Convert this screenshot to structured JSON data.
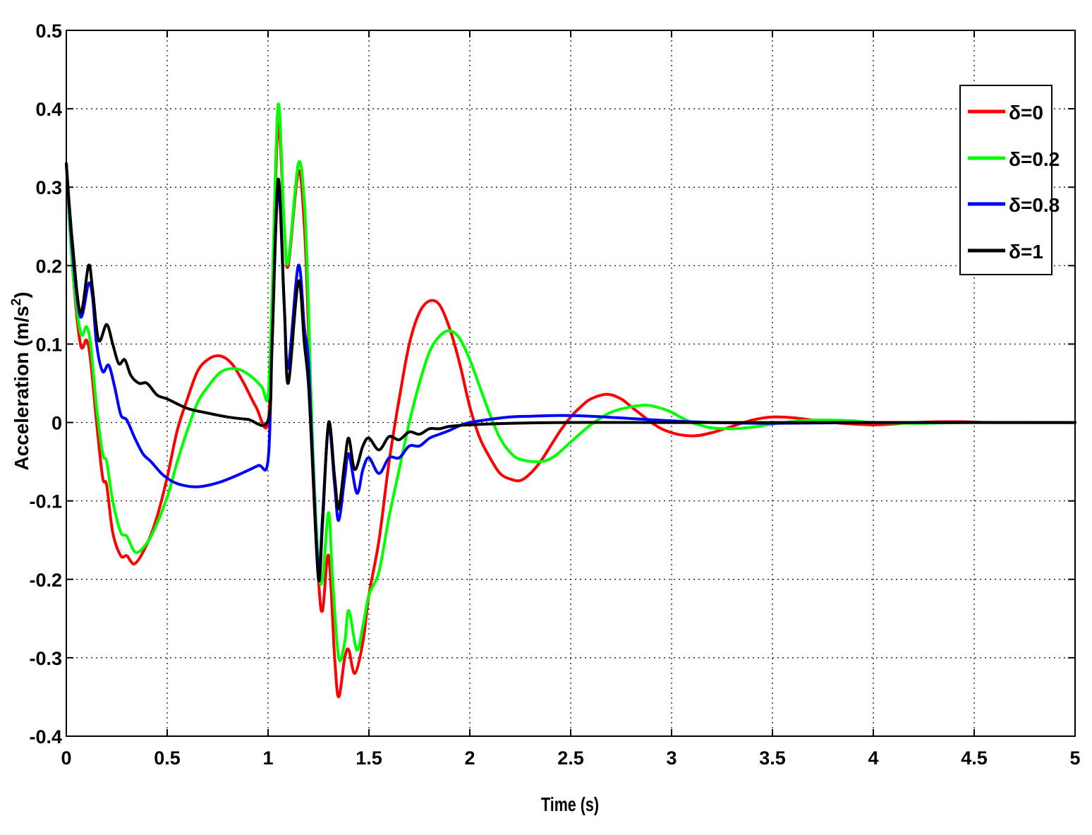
{
  "chart_data": {
    "type": "line",
    "title": "",
    "xlabel": "Time (s)",
    "ylabel": "Acceleration (m/s",
    "ylabel_superscript": "2",
    "ylabel_suffix": ")",
    "xlim": [
      0,
      5
    ],
    "ylim": [
      -0.4,
      0.5
    ],
    "grid": true,
    "legend_position": "top-right",
    "x_ticks": [
      0,
      0.5,
      1,
      1.5,
      2,
      2.5,
      3,
      3.5,
      4,
      4.5,
      5
    ],
    "x_tick_labels": [
      "0",
      "0.5",
      "1",
      "1.5",
      "2",
      "2.5",
      "3",
      "3.5",
      "4",
      "4.5",
      "5"
    ],
    "y_ticks": [
      -0.4,
      -0.3,
      -0.2,
      -0.1,
      0,
      0.1,
      0.2,
      0.3,
      0.4,
      0.5
    ],
    "y_tick_labels": [
      "-0.4",
      "-0.3",
      "-0.2",
      "-0.1",
      "0",
      "0.1",
      "0.2",
      "0.3",
      "0.4",
      "0.5"
    ],
    "series": [
      {
        "name": "δ=0",
        "color": "#ff0000",
        "points": [
          [
            0,
            0.33
          ],
          [
            0.03,
            0.2
          ],
          [
            0.07,
            0.1
          ],
          [
            0.1,
            0.105
          ],
          [
            0.12,
            0.08
          ],
          [
            0.15,
            0.0
          ],
          [
            0.18,
            -0.07
          ],
          [
            0.2,
            -0.08
          ],
          [
            0.23,
            -0.14
          ],
          [
            0.27,
            -0.17
          ],
          [
            0.3,
            -0.17
          ],
          [
            0.34,
            -0.18
          ],
          [
            0.4,
            -0.155
          ],
          [
            0.45,
            -0.12
          ],
          [
            0.5,
            -0.07
          ],
          [
            0.55,
            -0.01
          ],
          [
            0.6,
            0.03
          ],
          [
            0.65,
            0.065
          ],
          [
            0.7,
            0.08
          ],
          [
            0.76,
            0.085
          ],
          [
            0.82,
            0.075
          ],
          [
            0.88,
            0.05
          ],
          [
            0.94,
            0.02
          ],
          [
            1.0,
            0.0
          ],
          [
            1.02,
            0.15
          ],
          [
            1.05,
            0.38
          ],
          [
            1.08,
            0.25
          ],
          [
            1.1,
            0.2
          ],
          [
            1.15,
            0.32
          ],
          [
            1.18,
            0.25
          ],
          [
            1.2,
            0.12
          ],
          [
            1.22,
            -0.05
          ],
          [
            1.25,
            -0.2
          ],
          [
            1.27,
            -0.24
          ],
          [
            1.3,
            -0.17
          ],
          [
            1.33,
            -0.3
          ],
          [
            1.35,
            -0.35
          ],
          [
            1.38,
            -0.3
          ],
          [
            1.4,
            -0.29
          ],
          [
            1.43,
            -0.32
          ],
          [
            1.47,
            -0.28
          ],
          [
            1.5,
            -0.22
          ],
          [
            1.55,
            -0.15
          ],
          [
            1.6,
            -0.05
          ],
          [
            1.65,
            0.03
          ],
          [
            1.7,
            0.1
          ],
          [
            1.75,
            0.14
          ],
          [
            1.8,
            0.155
          ],
          [
            1.85,
            0.15
          ],
          [
            1.9,
            0.12
          ],
          [
            1.95,
            0.075
          ],
          [
            2.0,
            0.02
          ],
          [
            2.05,
            -0.02
          ],
          [
            2.1,
            -0.045
          ],
          [
            2.15,
            -0.065
          ],
          [
            2.2,
            -0.072
          ],
          [
            2.25,
            -0.074
          ],
          [
            2.3,
            -0.065
          ],
          [
            2.35,
            -0.05
          ],
          [
            2.4,
            -0.03
          ],
          [
            2.45,
            -0.01
          ],
          [
            2.5,
            0.007
          ],
          [
            2.55,
            0.02
          ],
          [
            2.6,
            0.03
          ],
          [
            2.68,
            0.036
          ],
          [
            2.75,
            0.03
          ],
          [
            2.8,
            0.02
          ],
          [
            2.85,
            0.01
          ],
          [
            2.9,
            0.0
          ],
          [
            2.95,
            -0.008
          ],
          [
            3.0,
            -0.013
          ],
          [
            3.05,
            -0.016
          ],
          [
            3.12,
            -0.017
          ],
          [
            3.2,
            -0.013
          ],
          [
            3.3,
            -0.005
          ],
          [
            3.4,
            0.003
          ],
          [
            3.5,
            0.007
          ],
          [
            3.6,
            0.006
          ],
          [
            3.7,
            0.003
          ],
          [
            3.8,
            0.0
          ],
          [
            3.9,
            -0.002
          ],
          [
            4.0,
            -0.003
          ],
          [
            4.1,
            -0.002
          ],
          [
            4.2,
            0.0
          ],
          [
            4.4,
            0.001
          ],
          [
            4.6,
            0.0
          ],
          [
            5.0,
            0.0
          ]
        ]
      },
      {
        "name": "δ=0.2",
        "color": "#00ff00",
        "points": [
          [
            0,
            0.33
          ],
          [
            0.03,
            0.2
          ],
          [
            0.07,
            0.115
          ],
          [
            0.1,
            0.122
          ],
          [
            0.12,
            0.1
          ],
          [
            0.15,
            0.02
          ],
          [
            0.18,
            -0.04
          ],
          [
            0.2,
            -0.05
          ],
          [
            0.23,
            -0.1
          ],
          [
            0.27,
            -0.14
          ],
          [
            0.3,
            -0.145
          ],
          [
            0.34,
            -0.165
          ],
          [
            0.38,
            -0.16
          ],
          [
            0.43,
            -0.14
          ],
          [
            0.5,
            -0.095
          ],
          [
            0.55,
            -0.05
          ],
          [
            0.6,
            -0.01
          ],
          [
            0.65,
            0.025
          ],
          [
            0.7,
            0.045
          ],
          [
            0.77,
            0.065
          ],
          [
            0.85,
            0.068
          ],
          [
            0.92,
            0.058
          ],
          [
            0.97,
            0.045
          ],
          [
            1.0,
            0.035
          ],
          [
            1.02,
            0.16
          ],
          [
            1.05,
            0.405
          ],
          [
            1.08,
            0.25
          ],
          [
            1.1,
            0.205
          ],
          [
            1.15,
            0.33
          ],
          [
            1.18,
            0.28
          ],
          [
            1.2,
            0.15
          ],
          [
            1.22,
            -0.02
          ],
          [
            1.25,
            -0.18
          ],
          [
            1.27,
            -0.2
          ],
          [
            1.3,
            -0.115
          ],
          [
            1.32,
            -0.2
          ],
          [
            1.35,
            -0.3
          ],
          [
            1.38,
            -0.28
          ],
          [
            1.4,
            -0.24
          ],
          [
            1.44,
            -0.29
          ],
          [
            1.47,
            -0.26
          ],
          [
            1.5,
            -0.22
          ],
          [
            1.55,
            -0.19
          ],
          [
            1.6,
            -0.12
          ],
          [
            1.65,
            -0.06
          ],
          [
            1.7,
            0.0
          ],
          [
            1.75,
            0.05
          ],
          [
            1.8,
            0.09
          ],
          [
            1.85,
            0.11
          ],
          [
            1.9,
            0.117
          ],
          [
            1.95,
            0.107
          ],
          [
            2.0,
            0.08
          ],
          [
            2.05,
            0.045
          ],
          [
            2.1,
            0.01
          ],
          [
            2.15,
            -0.02
          ],
          [
            2.2,
            -0.038
          ],
          [
            2.25,
            -0.047
          ],
          [
            2.35,
            -0.05
          ],
          [
            2.42,
            -0.043
          ],
          [
            2.5,
            -0.025
          ],
          [
            2.6,
            -0.003
          ],
          [
            2.7,
            0.013
          ],
          [
            2.8,
            0.02
          ],
          [
            2.88,
            0.022
          ],
          [
            2.95,
            0.018
          ],
          [
            3.0,
            0.013
          ],
          [
            3.05,
            0.006
          ],
          [
            3.1,
            0.0
          ],
          [
            3.15,
            -0.004
          ],
          [
            3.2,
            -0.007
          ],
          [
            3.3,
            -0.008
          ],
          [
            3.4,
            -0.006
          ],
          [
            3.5,
            -0.002
          ],
          [
            3.6,
            0.001
          ],
          [
            3.7,
            0.003
          ],
          [
            3.8,
            0.003
          ],
          [
            3.9,
            0.002
          ],
          [
            4.0,
            0.0
          ],
          [
            4.2,
            -0.001
          ],
          [
            4.5,
            0.0
          ],
          [
            5.0,
            0.0
          ]
        ]
      },
      {
        "name": "δ=0.8",
        "color": "#0000ff",
        "points": [
          [
            0,
            0.33
          ],
          [
            0.03,
            0.22
          ],
          [
            0.07,
            0.135
          ],
          [
            0.11,
            0.177
          ],
          [
            0.13,
            0.16
          ],
          [
            0.15,
            0.1
          ],
          [
            0.18,
            0.065
          ],
          [
            0.21,
            0.073
          ],
          [
            0.24,
            0.045
          ],
          [
            0.27,
            0.01
          ],
          [
            0.3,
            0.003
          ],
          [
            0.34,
            -0.02
          ],
          [
            0.38,
            -0.04
          ],
          [
            0.42,
            -0.05
          ],
          [
            0.48,
            -0.067
          ],
          [
            0.55,
            -0.078
          ],
          [
            0.65,
            -0.082
          ],
          [
            0.75,
            -0.077
          ],
          [
            0.85,
            -0.067
          ],
          [
            0.95,
            -0.055
          ],
          [
            1.0,
            -0.048
          ],
          [
            1.02,
            0.1
          ],
          [
            1.05,
            0.3
          ],
          [
            1.08,
            0.15
          ],
          [
            1.1,
            0.07
          ],
          [
            1.15,
            0.2
          ],
          [
            1.18,
            0.12
          ],
          [
            1.2,
            0.08
          ],
          [
            1.22,
            -0.04
          ],
          [
            1.25,
            -0.19
          ],
          [
            1.27,
            -0.12
          ],
          [
            1.3,
            -0.005
          ],
          [
            1.33,
            -0.08
          ],
          [
            1.35,
            -0.125
          ],
          [
            1.38,
            -0.07
          ],
          [
            1.4,
            -0.04
          ],
          [
            1.44,
            -0.09
          ],
          [
            1.47,
            -0.06
          ],
          [
            1.5,
            -0.045
          ],
          [
            1.55,
            -0.065
          ],
          [
            1.6,
            -0.045
          ],
          [
            1.65,
            -0.045
          ],
          [
            1.7,
            -0.03
          ],
          [
            1.75,
            -0.03
          ],
          [
            1.8,
            -0.02
          ],
          [
            1.85,
            -0.015
          ],
          [
            1.9,
            -0.01
          ],
          [
            1.95,
            -0.004
          ],
          [
            2.0,
            0.0
          ],
          [
            2.1,
            0.004
          ],
          [
            2.2,
            0.007
          ],
          [
            2.3,
            0.008
          ],
          [
            2.45,
            0.009
          ],
          [
            2.6,
            0.008
          ],
          [
            2.8,
            0.005
          ],
          [
            3.0,
            0.002
          ],
          [
            3.2,
            0.0
          ],
          [
            3.5,
            -0.001
          ],
          [
            4.0,
            0.0
          ],
          [
            5.0,
            0.0
          ]
        ]
      },
      {
        "name": "δ=1",
        "color": "#000000",
        "points": [
          [
            0,
            0.33
          ],
          [
            0.03,
            0.23
          ],
          [
            0.07,
            0.14
          ],
          [
            0.11,
            0.2
          ],
          [
            0.13,
            0.17
          ],
          [
            0.16,
            0.105
          ],
          [
            0.2,
            0.125
          ],
          [
            0.23,
            0.1
          ],
          [
            0.26,
            0.075
          ],
          [
            0.29,
            0.08
          ],
          [
            0.32,
            0.06
          ],
          [
            0.36,
            0.05
          ],
          [
            0.4,
            0.05
          ],
          [
            0.45,
            0.035
          ],
          [
            0.5,
            0.03
          ],
          [
            0.6,
            0.018
          ],
          [
            0.7,
            0.012
          ],
          [
            0.8,
            0.007
          ],
          [
            0.9,
            0.004
          ],
          [
            1.0,
            0.003
          ],
          [
            1.02,
            0.1
          ],
          [
            1.05,
            0.31
          ],
          [
            1.08,
            0.15
          ],
          [
            1.1,
            0.05
          ],
          [
            1.15,
            0.18
          ],
          [
            1.18,
            0.1
          ],
          [
            1.2,
            0.05
          ],
          [
            1.22,
            -0.05
          ],
          [
            1.25,
            -0.2
          ],
          [
            1.27,
            -0.13
          ],
          [
            1.3,
            0.0
          ],
          [
            1.33,
            -0.07
          ],
          [
            1.35,
            -0.11
          ],
          [
            1.38,
            -0.05
          ],
          [
            1.4,
            -0.02
          ],
          [
            1.43,
            -0.06
          ],
          [
            1.47,
            -0.03
          ],
          [
            1.5,
            -0.02
          ],
          [
            1.55,
            -0.035
          ],
          [
            1.6,
            -0.018
          ],
          [
            1.65,
            -0.022
          ],
          [
            1.7,
            -0.012
          ],
          [
            1.75,
            -0.015
          ],
          [
            1.8,
            -0.008
          ],
          [
            1.85,
            -0.008
          ],
          [
            1.9,
            -0.005
          ],
          [
            2.0,
            -0.003
          ],
          [
            2.2,
            -0.001
          ],
          [
            2.5,
            0.0
          ],
          [
            3.0,
            0.0
          ],
          [
            5.0,
            0.0
          ]
        ]
      }
    ]
  }
}
